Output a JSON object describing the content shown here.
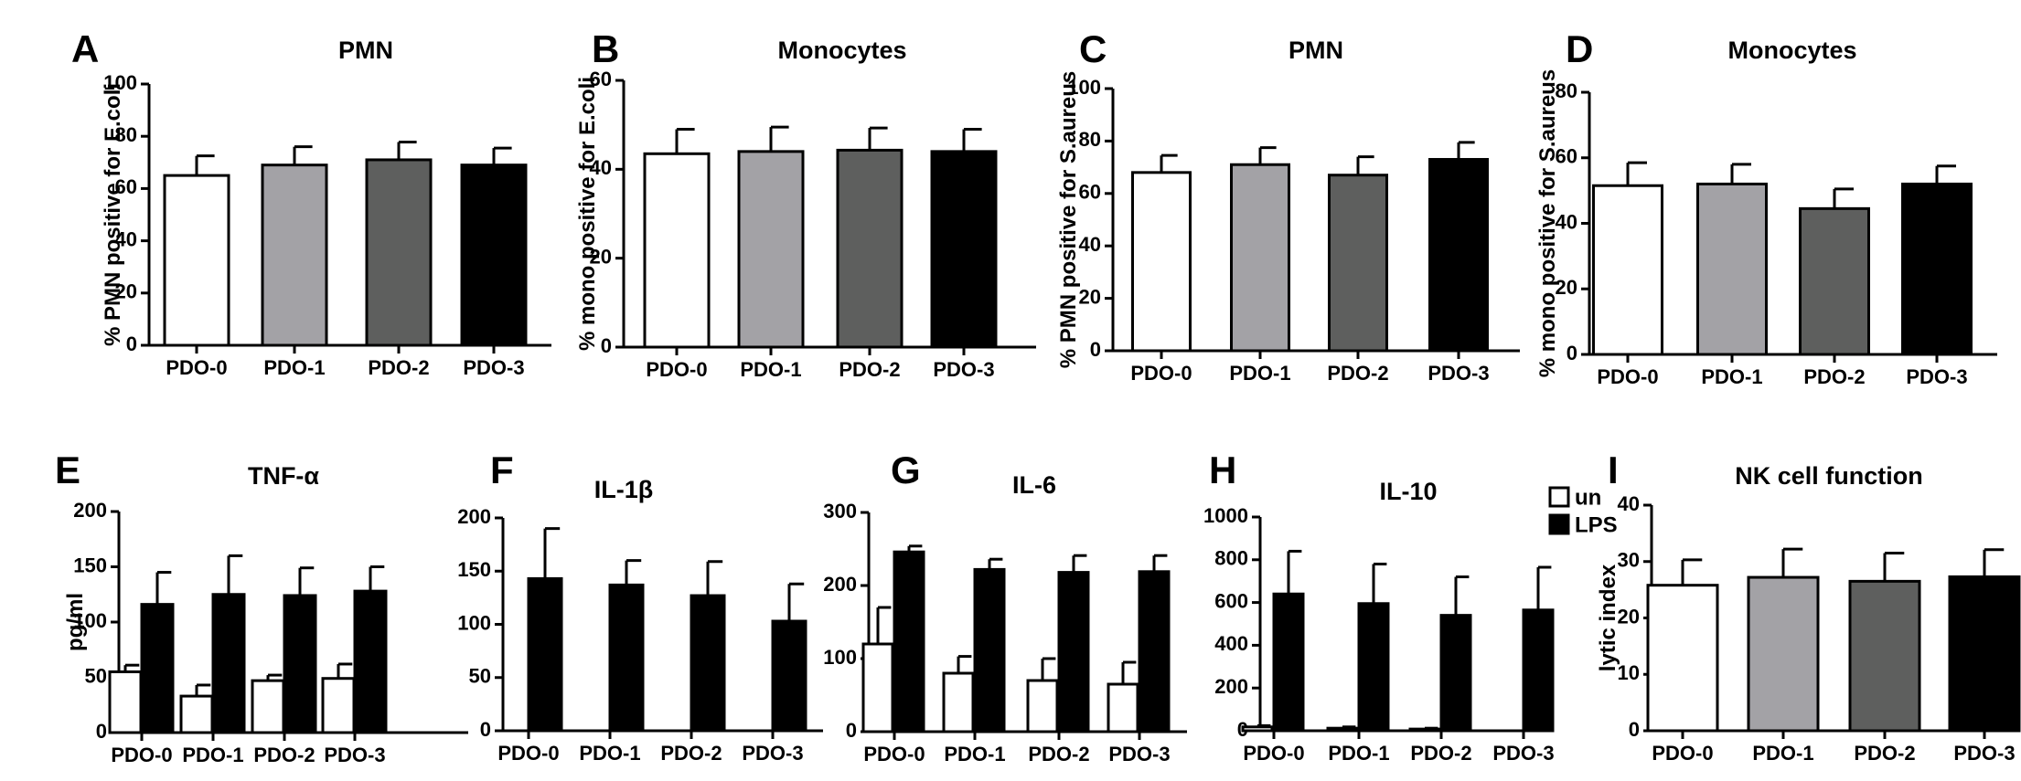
{
  "palette": {
    "PDO-0": "#ffffff",
    "PDO-1": "#a3a2a6",
    "PDO-2": "#5e5f5e",
    "PDO-3": "#000000",
    "un": "#ffffff",
    "LPS": "#000000"
  },
  "legend": {
    "items": [
      "un",
      "LPS"
    ]
  },
  "chart_data": [
    {
      "panel": "A",
      "type": "bar",
      "title": "PMN",
      "ylabel": "% PMN positive for E.coli",
      "ylim": [
        0,
        100
      ],
      "yticks": [
        0,
        20,
        40,
        60,
        80,
        100
      ],
      "categories": [
        "PDO-0",
        "PDO-1",
        "PDO-2",
        "PDO-3"
      ],
      "series": [
        {
          "values": [
            65,
            69,
            71,
            69
          ],
          "errors": [
            7.5,
            7,
            6.8,
            6.5
          ]
        }
      ]
    },
    {
      "panel": "B",
      "type": "bar",
      "title": "Monocytes",
      "ylabel": "% mono positive for E.coli",
      "ylim": [
        0,
        60
      ],
      "yticks": [
        0,
        20,
        40,
        60
      ],
      "categories": [
        "PDO-0",
        "PDO-1",
        "PDO-2",
        "PDO-3"
      ],
      "series": [
        {
          "values": [
            43.5,
            44,
            44.3,
            44
          ],
          "errors": [
            5.5,
            5.5,
            5,
            5
          ]
        }
      ]
    },
    {
      "panel": "C",
      "type": "bar",
      "title": "PMN",
      "ylabel": "% PMN positive for S.aureus",
      "ylim": [
        0,
        100
      ],
      "yticks": [
        0,
        20,
        40,
        60,
        80,
        100
      ],
      "categories": [
        "PDO-0",
        "PDO-1",
        "PDO-2",
        "PDO-3"
      ],
      "series": [
        {
          "values": [
            68,
            71,
            67,
            73
          ],
          "errors": [
            6.5,
            6.5,
            7,
            6.5
          ]
        }
      ]
    },
    {
      "panel": "D",
      "type": "bar",
      "title": "Monocytes",
      "ylabel": "% mono positive for S.aureus",
      "ylim": [
        0,
        80
      ],
      "yticks": [
        0,
        20,
        40,
        60,
        80
      ],
      "categories": [
        "PDO-0",
        "PDO-1",
        "PDO-2",
        "PDO-3"
      ],
      "series": [
        {
          "values": [
            51.5,
            52,
            44.5,
            52
          ],
          "errors": [
            7,
            6,
            6,
            5.5
          ]
        }
      ]
    },
    {
      "panel": "E",
      "type": "bar",
      "title": "TNF-α",
      "ylabel": "pg/ml",
      "ylim": [
        0,
        200
      ],
      "yticks": [
        0,
        50,
        100,
        150,
        200
      ],
      "categories": [
        "PDO-0",
        "PDO-1",
        "PDO-2",
        "PDO-3"
      ],
      "series": [
        {
          "name": "un",
          "values": [
            55,
            33,
            47,
            49
          ],
          "errors": [
            6,
            10,
            5,
            13
          ]
        },
        {
          "name": "LPS",
          "values": [
            116,
            125,
            124,
            128
          ],
          "errors": [
            29,
            35,
            25,
            22
          ]
        }
      ]
    },
    {
      "panel": "F",
      "type": "bar",
      "title": "IL-1β",
      "ylabel": "",
      "ylim": [
        0,
        200
      ],
      "yticks": [
        0,
        50,
        100,
        150,
        200
      ],
      "categories": [
        "PDO-0",
        "PDO-1",
        "PDO-2",
        "PDO-3"
      ],
      "series": [
        {
          "name": "un",
          "values": [
            0,
            0,
            0,
            0
          ],
          "errors": [
            0,
            0,
            0,
            0
          ]
        },
        {
          "name": "LPS",
          "values": [
            143,
            137,
            127,
            103
          ],
          "errors": [
            47,
            23,
            32,
            35
          ]
        }
      ]
    },
    {
      "panel": "G",
      "type": "bar",
      "title": "IL-6",
      "ylabel": "",
      "ylim": [
        0,
        300
      ],
      "yticks": [
        0,
        100,
        200,
        300
      ],
      "categories": [
        "PDO-0",
        "PDO-1",
        "PDO-2",
        "PDO-3"
      ],
      "series": [
        {
          "name": "un",
          "values": [
            120,
            80,
            70,
            65
          ],
          "errors": [
            50,
            23,
            30,
            30
          ]
        },
        {
          "name": "LPS",
          "values": [
            246,
            222,
            218,
            219
          ],
          "errors": [
            8,
            14,
            23,
            22
          ]
        }
      ]
    },
    {
      "panel": "H",
      "type": "bar",
      "title": "IL-10",
      "ylabel": "",
      "ylim": [
        0,
        1000
      ],
      "yticks": [
        0,
        200,
        400,
        600,
        800,
        1000
      ],
      "categories": [
        "PDO-0",
        "PDO-1",
        "PDO-2",
        "PDO-3"
      ],
      "series": [
        {
          "name": "un",
          "values": [
            18,
            12,
            8,
            0
          ],
          "errors": [
            6,
            6,
            4,
            0
          ]
        },
        {
          "name": "LPS",
          "values": [
            640,
            595,
            540,
            565
          ],
          "errors": [
            200,
            185,
            180,
            200
          ]
        }
      ]
    },
    {
      "panel": "I",
      "type": "bar",
      "title": "NK cell function",
      "ylabel": "lytic index",
      "ylim": [
        0,
        40
      ],
      "yticks": [
        0,
        10,
        20,
        30,
        40
      ],
      "categories": [
        "PDO-0",
        "PDO-1",
        "PDO-2",
        "PDO-3"
      ],
      "series": [
        {
          "values": [
            25.8,
            27.2,
            26.5,
            27.3
          ],
          "errors": [
            4.5,
            5,
            5,
            4.8
          ]
        }
      ]
    }
  ]
}
